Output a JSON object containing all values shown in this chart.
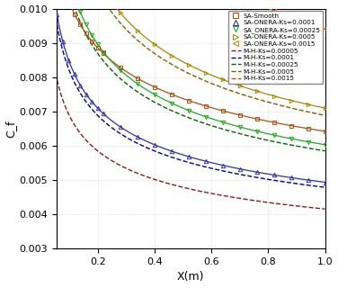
{
  "xlabel": "X(m)",
  "ylabel": "C_f",
  "xlim": [
    0.055,
    1.0
  ],
  "ylim": [
    0.003,
    0.01
  ],
  "yticks": [
    0.003,
    0.004,
    0.005,
    0.006,
    0.007,
    0.008,
    0.009,
    0.01
  ],
  "xticks": [
    0.2,
    0.4,
    0.6,
    0.8,
    1.0
  ],
  "background_color": "#ffffff",
  "grid_color": "#c8c8c8",
  "groups": [
    {
      "sa_Ks": 0.0,
      "mh_Ks": 5e-05,
      "sa_color": "#b05010",
      "mh_color": "#8b1a1a",
      "marker": "s",
      "sa_label": "SA-Smooth",
      "mh_label": "M-H-Ks=0.00005",
      "sa_scale": 1.0,
      "mh_scale": 0.97
    },
    {
      "sa_Ks": 0.0001,
      "mh_Ks": 0.0001,
      "sa_color": "#3030aa",
      "mh_color": "#00008b",
      "marker": "^",
      "sa_label": "SA-ONERA-Ks=0.0001",
      "mh_label": "M-H-Ks=0.0001",
      "sa_scale": 1.0,
      "mh_scale": 0.97
    },
    {
      "sa_Ks": 0.00025,
      "mh_Ks": 0.00025,
      "sa_color": "#22aa22",
      "mh_color": "#006400",
      "marker": "v",
      "sa_label": "SA_ONERA-Ks=0.00025",
      "mh_label": "M-H-Ks=0.00025",
      "sa_scale": 1.0,
      "mh_scale": 0.97
    },
    {
      "sa_Ks": 0.0005,
      "mh_Ks": 0.0005,
      "sa_color": "#aa8800",
      "mh_color": "#7a6200",
      "marker": ">",
      "sa_label": "SA-ONERA-Ks=0.0005",
      "mh_label": "M-H-Ks=0.0005",
      "sa_scale": 1.0,
      "mh_scale": 0.97
    },
    {
      "sa_Ks": 0.0015,
      "mh_Ks": 0.0015,
      "sa_color": "#e07820",
      "mh_color": "#c05000",
      "marker": "<",
      "sa_label": "SA-ONERA-Ks=0.0015",
      "mh_label": "M-H-Ks=0.0015",
      "sa_scale": 1.0,
      "mh_scale": 0.97
    }
  ]
}
